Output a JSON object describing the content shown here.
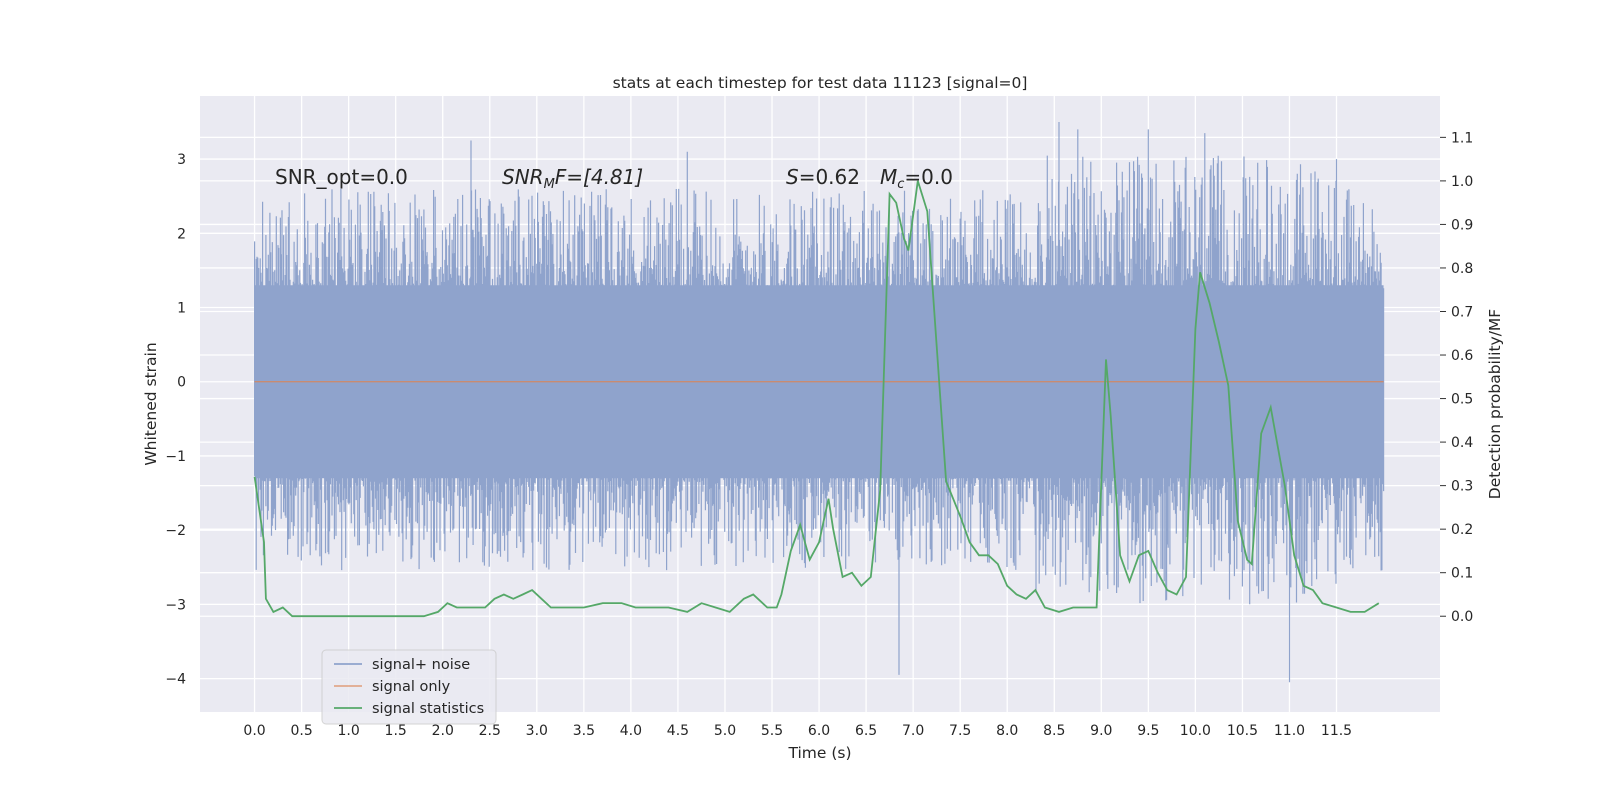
{
  "chart_data": {
    "type": "line",
    "title": "stats at each timestep for test data 11123 [signal=0]",
    "xlabel": "Time (s)",
    "ylabel": "Whitened strain",
    "y2label": "Detection probability/MF",
    "xlim": [
      -0.58,
      12.6
    ],
    "ylim": [
      -4.45,
      3.85
    ],
    "y2lim": [
      -0.22,
      1.195
    ],
    "x_ticks": [
      "0.0",
      "0.5",
      "1.0",
      "1.5",
      "2.0",
      "2.5",
      "3.0",
      "3.5",
      "4.0",
      "4.5",
      "5.0",
      "5.5",
      "6.0",
      "6.5",
      "7.0",
      "7.5",
      "8.0",
      "8.5",
      "9.0",
      "9.5",
      "10.0",
      "10.5",
      "11.0",
      "11.5"
    ],
    "y_ticks": [
      "3",
      "2",
      "1",
      "0",
      "−1",
      "−2",
      "−3",
      "−4"
    ],
    "y2_ticks": [
      "1.1",
      "1.0",
      "0.9",
      "0.8",
      "0.7",
      "0.6",
      "0.5",
      "0.4",
      "0.3",
      "0.2",
      "0.1",
      "0.0"
    ],
    "grid": true,
    "legend_position": "lower-left",
    "annotations": {
      "snr_opt": "SNR_opt=0.0",
      "snr_mf_base": "SNR",
      "snr_mf_sub": "M",
      "snr_mf_rest": "F=[4.81]",
      "s_var": "S",
      "s_rest": "=0.62",
      "mc_var": "M",
      "mc_sub": "c",
      "mc_rest": "=0.0"
    },
    "colors": {
      "noise": "#8fa3cc",
      "signal_only": "#dd8452",
      "statistics": "#55a868",
      "background": "#eaeaf2",
      "grid": "#ffffff"
    },
    "series": [
      {
        "name": "signal+ noise",
        "axis": "left",
        "style": "dense-noise",
        "t_range": [
          0.0,
          12.0
        ],
        "core_band": [
          -1.3,
          1.3
        ],
        "peaks": [
          {
            "x": 2.3,
            "y": 3.25
          },
          {
            "x": 4.6,
            "y": 3.1
          },
          {
            "x": 6.85,
            "y": -3.95
          },
          {
            "x": 8.55,
            "y": 3.5
          },
          {
            "x": 8.75,
            "y": 3.4
          },
          {
            "x": 9.5,
            "y": 3.4
          },
          {
            "x": 10.1,
            "y": 3.35
          },
          {
            "x": 11.0,
            "y": -4.05
          },
          {
            "x": 11.5,
            "y": 3.0
          }
        ]
      },
      {
        "name": "signal only",
        "axis": "left",
        "x": [
          0.0,
          12.0
        ],
        "y": [
          0.0,
          0.0
        ]
      },
      {
        "name": "signal statistics",
        "axis": "right",
        "x": [
          0.0,
          0.1,
          0.12,
          0.2,
          0.3,
          0.4,
          0.5,
          0.6,
          0.8,
          1.0,
          1.2,
          1.4,
          1.6,
          1.8,
          1.95,
          2.05,
          2.15,
          2.3,
          2.45,
          2.55,
          2.65,
          2.75,
          2.85,
          2.95,
          3.05,
          3.15,
          3.3,
          3.5,
          3.7,
          3.9,
          4.05,
          4.2,
          4.4,
          4.6,
          4.75,
          4.9,
          5.05,
          5.2,
          5.3,
          5.45,
          5.55,
          5.6,
          5.7,
          5.8,
          5.85,
          5.9,
          6.0,
          6.1,
          6.15,
          6.25,
          6.35,
          6.45,
          6.55,
          6.65,
          6.75,
          6.82,
          6.9,
          6.95,
          7.0,
          7.05,
          7.15,
          7.25,
          7.35,
          7.5,
          7.6,
          7.7,
          7.8,
          7.9,
          8.0,
          8.1,
          8.2,
          8.3,
          8.4,
          8.55,
          8.7,
          8.85,
          8.95,
          9.05,
          9.1,
          9.2,
          9.3,
          9.4,
          9.5,
          9.6,
          9.7,
          9.8,
          9.9,
          10.0,
          10.05,
          10.15,
          10.25,
          10.35,
          10.45,
          10.55,
          10.6,
          10.7,
          10.8,
          10.95,
          11.05,
          11.15,
          11.25,
          11.35,
          11.5,
          11.65,
          11.8,
          11.95
        ],
        "y": [
          0.32,
          0.17,
          0.04,
          0.01,
          0.02,
          0.0,
          0.0,
          0.0,
          0.0,
          0.0,
          0.0,
          0.0,
          0.0,
          0.0,
          0.01,
          0.03,
          0.02,
          0.02,
          0.02,
          0.04,
          0.05,
          0.04,
          0.05,
          0.06,
          0.04,
          0.02,
          0.02,
          0.02,
          0.03,
          0.03,
          0.02,
          0.02,
          0.02,
          0.01,
          0.03,
          0.02,
          0.01,
          0.04,
          0.05,
          0.02,
          0.02,
          0.05,
          0.15,
          0.21,
          0.17,
          0.13,
          0.17,
          0.27,
          0.2,
          0.09,
          0.1,
          0.07,
          0.09,
          0.29,
          0.97,
          0.95,
          0.87,
          0.84,
          0.92,
          1.0,
          0.93,
          0.62,
          0.31,
          0.23,
          0.17,
          0.14,
          0.14,
          0.12,
          0.07,
          0.05,
          0.04,
          0.06,
          0.02,
          0.01,
          0.02,
          0.02,
          0.02,
          0.59,
          0.46,
          0.14,
          0.08,
          0.14,
          0.15,
          0.1,
          0.06,
          0.05,
          0.09,
          0.66,
          0.79,
          0.72,
          0.63,
          0.53,
          0.22,
          0.13,
          0.12,
          0.42,
          0.48,
          0.3,
          0.14,
          0.07,
          0.06,
          0.03,
          0.02,
          0.01,
          0.01,
          0.03
        ]
      }
    ]
  }
}
